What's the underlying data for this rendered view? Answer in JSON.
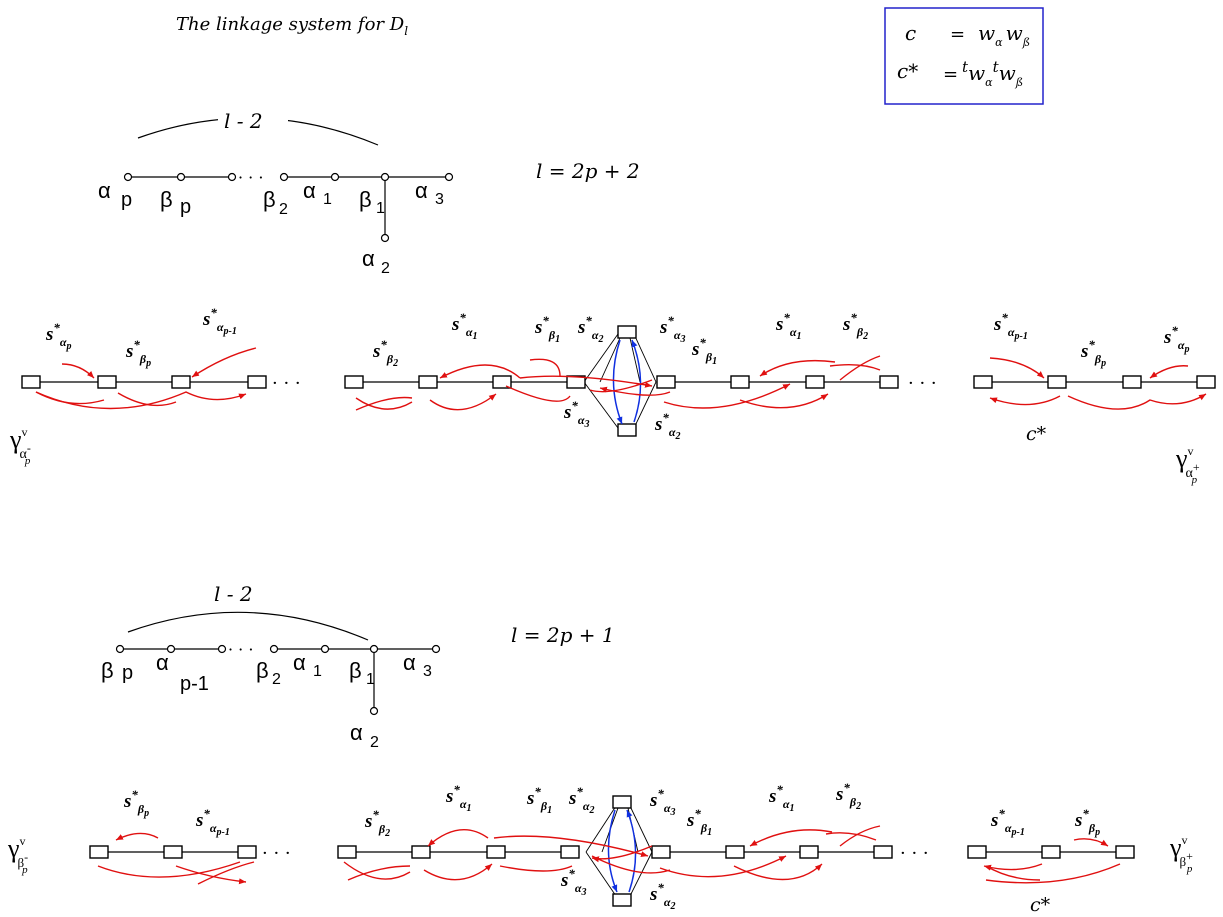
{
  "title": "The linkage system for D",
  "title_sub": "l",
  "legend": {
    "c_lhs": "c",
    "c_rhs_a": "w",
    "c_rhs_a_sub": "α",
    "c_rhs_b": "w",
    "c_rhs_b_sub": "ß",
    "cstar_lhs": "c*",
    "cstar_t": "t",
    "cstar_rhs_a": "w",
    "cstar_rhs_a_sub": "α",
    "cstar_rhs_b": "w",
    "cstar_rhs_b_sub": "ß",
    "eq": "="
  },
  "even": {
    "arc_label": "l - 2",
    "formula": "l = 2p + 2",
    "dynkin_labels": [
      "α",
      "p",
      "β",
      "p",
      "β",
      "2",
      "α",
      "1",
      "β",
      "1",
      "α",
      "3",
      "α",
      "2"
    ],
    "dots": "· · ·",
    "gamma_left": "γ",
    "gamma_left_sup": "v",
    "gamma_left_sub": "α",
    "gamma_left_subsup": "-",
    "gamma_left_subsub": "p",
    "gamma_right": "γ",
    "gamma_right_sup": "v",
    "gamma_right_sub": "α",
    "gamma_right_subsup": "+",
    "gamma_right_subsub": "p",
    "cstar": "c*",
    "s_labels": [
      "s",
      "s",
      "s",
      "s",
      "s",
      "s",
      "s",
      "s",
      "s",
      "s",
      "s",
      "s",
      "s",
      "s",
      "s",
      "s"
    ],
    "s_subs": [
      "αp",
      "βp",
      "αp-1",
      "β2",
      "α1",
      "β1",
      "α2",
      "α3",
      "β1",
      "α1",
      "β2",
      "αp-1",
      "βp",
      "αp",
      "α3",
      "α2"
    ]
  },
  "odd": {
    "arc_label": "l - 2",
    "formula": "l = 2p + 1",
    "dynkin_labels": [
      "β",
      "p",
      "α",
      "p-1",
      "β",
      "2",
      "α",
      "1",
      "β",
      "1",
      "α",
      "3",
      "α",
      "2"
    ],
    "dots": "· · ·",
    "gamma_left": "γ",
    "gamma_left_sup": "v",
    "gamma_left_sub": "β",
    "gamma_left_subsup": "-",
    "gamma_left_subsub": "p",
    "gamma_right": "γ",
    "gamma_right_sup": "v",
    "gamma_right_sub": "β",
    "gamma_right_subsup": "+",
    "gamma_right_subsub": "p",
    "cstar": "c*",
    "s_subs": [
      "βp",
      "αp-1",
      "β2",
      "α1",
      "β1",
      "α2",
      "α3",
      "β1",
      "α1",
      "β2",
      "αp-1",
      "βp",
      "α3",
      "α2"
    ]
  }
}
